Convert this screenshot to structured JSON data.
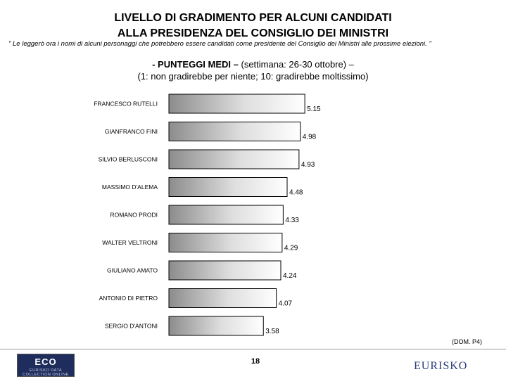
{
  "title_line1": "LIVELLO DI GRADIMENTO PER ALCUNI CANDIDATI",
  "title_line2": "ALLA PRESIDENZA DEL CONSIGLIO DEI MINISTRI",
  "question": "\" Le leggerò ora i nomi di alcuni personaggi che potrebbero essere candidati come presidente del Consiglio dei Ministri alle prossime elezioni. \"",
  "subtitle_bold": "- PUNTEGGI MEDI –",
  "subtitle_rest": " (settimana: 26-30 ottobre) –",
  "subtitle_line2": "(1: non gradirebbe per niente; 10: gradirebbe moltissimo)",
  "source": "(DOM. P4)",
  "page_number": "18",
  "logo_left_text": "ECO",
  "logo_left_small": "EURISKO DATA COLLECTION ONLINE",
  "logo_right_text": "EURISKO",
  "chart_data": {
    "type": "bar",
    "orientation": "horizontal",
    "categories": [
      "FRANCESCO RUTELLI",
      "GIANFRANCO FINI",
      "SILVIO BERLUSCONI",
      "MASSIMO D'ALEMA",
      "ROMANO PRODI",
      "WALTER VELTRONI",
      "GIULIANO AMATO",
      "ANTONIO DI PIETRO",
      "SERGIO D'ANTONI"
    ],
    "values": [
      5.15,
      4.98,
      4.93,
      4.48,
      4.33,
      4.29,
      4.24,
      4.07,
      3.58
    ],
    "value_labels": [
      "5.15",
      "4.98",
      "4.93",
      "4.48",
      "4.33",
      "4.29",
      "4.24",
      "4.07",
      "3.58"
    ],
    "xlim": [
      0,
      5.4
    ],
    "grid": false,
    "legend": "none",
    "bar_fill": "gradient-grey"
  }
}
